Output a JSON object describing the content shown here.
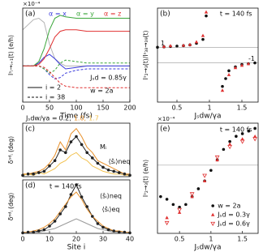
{
  "chart_data": [
    {
      "type": "line",
      "panel": "(a)",
      "multiplier": "×10⁻⁴",
      "xlabel": "Time (fs)",
      "ylabel": "Iˢᵢ→ᵢ₊₁(t) (e/h)",
      "x": [
        0,
        20,
        30,
        40,
        50,
        60,
        70,
        80,
        100,
        120,
        140,
        160,
        180,
        200
      ],
      "xlim": [
        0,
        200
      ],
      "xticks": [
        0,
        50,
        100,
        150,
        200
      ],
      "ylim": [
        -2.5,
        4
      ],
      "series": [
        {
          "color": "#b4b4b4",
          "dash": "solid",
          "values": [
            2.5,
            3.2,
            3.3,
            3.0,
            1.5,
            0.5,
            0.2,
            0,
            0,
            0,
            0,
            0,
            0,
            0
          ]
        },
        {
          "color": "#3b3bdc",
          "dash": "solid",
          "values": [
            0,
            0,
            0.2,
            0.6,
            0.8,
            0.5,
            0.1,
            -0.2,
            -0.1,
            0,
            0,
            0,
            0,
            0
          ]
        },
        {
          "color": "#3aa63a",
          "dash": "solid",
          "values": [
            0,
            0,
            0.3,
            1.2,
            2.5,
            3.3,
            3.5,
            3.4,
            3.3,
            3.3,
            3.3,
            3.3,
            3.3,
            3.3
          ]
        },
        {
          "color": "#e03030",
          "dash": "solid",
          "values": [
            0,
            0,
            0.1,
            0.5,
            1.2,
            2.0,
            2.4,
            2.5,
            2.5,
            2.4,
            2.4,
            2.4,
            2.4,
            2.4
          ]
        },
        {
          "color": "#3b3bdc",
          "dash": "dashed",
          "values": [
            0,
            0,
            0,
            -0.2,
            -0.6,
            -0.9,
            -0.8,
            -0.5,
            -0.3,
            -0.2,
            -0.2,
            -0.2,
            -0.2,
            -0.2
          ]
        },
        {
          "color": "#3aa63a",
          "dash": "dashed",
          "values": [
            0,
            0,
            0,
            -0.2,
            -0.5,
            -0.3,
            0.2,
            0.4,
            0.3,
            0.2,
            0.2,
            0.2,
            0.2,
            0.2
          ]
        },
        {
          "color": "#e03030",
          "dash": "dashed",
          "values": [
            0,
            0,
            0,
            -0.1,
            -0.4,
            -0.8,
            -1.2,
            -1.4,
            -1.5,
            -1.5,
            -1.5,
            -1.5,
            -1.5,
            -1.5
          ]
        }
      ],
      "legend_colors": [
        {
          "label": "α = x",
          "color": "#3b3bdc"
        },
        {
          "label": "α = y",
          "color": "#3aa63a"
        },
        {
          "label": "α = z",
          "color": "#e03030"
        }
      ],
      "legend_styles": [
        {
          "label": "i = 2",
          "dash": "solid"
        },
        {
          "label": "i = 38",
          "dash": "dashed"
        }
      ],
      "annotations": [
        "Jₛd = 0.85γ",
        "w = 2a"
      ]
    },
    {
      "type": "scatter",
      "panel": "(b)",
      "annotations": [
        "t = 140 fs"
      ],
      "xlabel": "Jₛdw/γa",
      "ylabel": "Iˢ₂→₃(t)/Iˢ₃₈→₃₉(t)",
      "xlim": [
        0.2,
        1.75
      ],
      "xticks": [
        0.5,
        1,
        1.5
      ],
      "ylim": [
        -6,
        6
      ],
      "yticks": [
        1,
        -1
      ],
      "series": [
        {
          "color": "#111111",
          "marker": "circle",
          "x": [
            0.2,
            0.3,
            0.4,
            0.5,
            0.6,
            0.7,
            0.8,
            0.9,
            0.95,
            1.2,
            1.25,
            1.3,
            1.4,
            1.5,
            1.6,
            1.7
          ],
          "values": [
            1.0,
            1.05,
            1.1,
            1.15,
            1.2,
            1.3,
            1.5,
            2.0,
            5,
            -4,
            -3,
            -2,
            -1.5,
            -1.2,
            -1.1,
            -1.0
          ]
        },
        {
          "color": "#e03030",
          "marker": "triangle",
          "x": [
            0.3,
            0.4,
            0.6,
            0.7,
            0.8,
            0.9,
            0.95,
            1.2,
            1.3,
            1.4,
            1.5,
            1.6
          ],
          "values": [
            1.1,
            1.2,
            1.25,
            1.35,
            1.7,
            2.5,
            5.5,
            -4.5,
            -2.5,
            -1.6,
            -1.3,
            -1.1
          ]
        }
      ]
    },
    {
      "type": "line",
      "panel": "(c)",
      "ylabel": "δˢᵈᵢ (deg)",
      "legend_title": "Jₛdw/γa = ",
      "x": [
        0,
        2,
        4,
        6,
        8,
        10,
        12,
        14,
        16,
        18,
        20,
        22,
        24,
        26,
        28,
        30,
        32,
        34,
        36,
        38,
        40
      ],
      "xlim": [
        0,
        40
      ],
      "ylim": [
        0,
        2
      ],
      "series": [
        {
          "name": "0.2,",
          "color": "#222222",
          "dash": "solid",
          "marker": "circle",
          "values": [
            0.05,
            0.1,
            0.1,
            0.15,
            0.2,
            0.4,
            0.6,
            1.0,
            0.9,
            1.3,
            1.5,
            1.2,
            0.9,
            0.7,
            0.5,
            0.35,
            0.25,
            0.2,
            0.15,
            0.1,
            0.05
          ]
        },
        {
          "name": "1.0,",
          "color": "#e8902a",
          "dash": "solid",
          "values": [
            0.1,
            0.1,
            0.15,
            0.2,
            0.3,
            0.5,
            0.8,
            1.3,
            1.0,
            1.6,
            1.8,
            1.5,
            1.1,
            0.9,
            0.6,
            0.5,
            0.4,
            0.3,
            0.2,
            0.1,
            0.1
          ]
        },
        {
          "name": "1.7",
          "color": "#f2c14e",
          "dash": "solid",
          "values": [
            0.05,
            0.1,
            0.05,
            0.15,
            0.1,
            0.2,
            0.3,
            0.5,
            0.6,
            0.8,
            0.9,
            0.7,
            0.6,
            0.4,
            0.3,
            0.2,
            0.15,
            0.1,
            0.1,
            0.05,
            0.05
          ]
        }
      ],
      "annotations": [
        "Mᵢ",
        "⟨ŝᵢ⟩neq"
      ]
    },
    {
      "type": "line",
      "panel": "(d)",
      "xlabel": "Site i",
      "ylabel": "δⁿᵈᵢ (deg)",
      "x": [
        0,
        2,
        4,
        6,
        8,
        10,
        12,
        14,
        16,
        18,
        20,
        22,
        24,
        26,
        28,
        30,
        32,
        34,
        36,
        38,
        40
      ],
      "xlim": [
        0,
        40
      ],
      "xticks": [
        0,
        10,
        20,
        30,
        40
      ],
      "ylim": [
        0,
        2.2
      ],
      "series": [
        {
          "color": "#222222",
          "dash": "solid",
          "marker": "circle",
          "values": [
            0.02,
            0.05,
            0.05,
            0.1,
            0.15,
            0.3,
            0.5,
            0.8,
            1.1,
            1.6,
            2.0,
            1.5,
            1.1,
            0.7,
            0.4,
            0.25,
            0.15,
            0.1,
            0.05,
            0.05,
            0.02
          ]
        },
        {
          "color": "#e8902a",
          "dash": "solid",
          "values": [
            0.05,
            0.05,
            0.1,
            0.15,
            0.25,
            0.4,
            0.6,
            0.9,
            1.2,
            1.5,
            1.7,
            1.4,
            1.0,
            0.7,
            0.5,
            0.3,
            0.2,
            0.1,
            0.1,
            0.05,
            0.05
          ]
        },
        {
          "color": "#9a9a9a",
          "dash": "solid",
          "values": [
            0.02,
            0.03,
            0.05,
            0.05,
            0.1,
            0.15,
            0.2,
            0.3,
            0.4,
            0.5,
            0.6,
            0.5,
            0.4,
            0.3,
            0.2,
            0.15,
            0.1,
            0.05,
            0.05,
            0.03,
            0.02
          ]
        }
      ],
      "annotations": [
        "t = 140 fs",
        "⟨ŝᵢ⟩neq",
        "⟨ŝᵢ⟩eq"
      ]
    },
    {
      "type": "scatter",
      "panel": "(e)",
      "multiplier": "×10⁻⁴",
      "annotations": [
        "t = 140 fs"
      ],
      "xlabel": "Jₛdw/γa",
      "ylabel": "Iˢ₂→₃(t) (e/h)",
      "xlim": [
        0.15,
        1.75
      ],
      "xticks": [
        0.5,
        1,
        1.5
      ],
      "ylim": [
        -1.3,
        0.8
      ],
      "zero_line": true,
      "series": [
        {
          "name": "w = 2a",
          "color": "#111111",
          "marker": "circle",
          "x": [
            0.2,
            0.3,
            0.4,
            0.5,
            0.6,
            0.7,
            0.8,
            0.9,
            1.0,
            1.1,
            1.2,
            1.3,
            1.4,
            1.5,
            1.6,
            1.7
          ],
          "values": [
            -0.6,
            -0.65,
            -0.75,
            -0.8,
            -0.75,
            -0.6,
            -0.45,
            -0.3,
            -0.1,
            0.1,
            0.3,
            0.45,
            0.55,
            0.6,
            0.65,
            0.7
          ]
        },
        {
          "name": "Jₛd = 0.3γ",
          "color": "#e03030",
          "marker": "triangle",
          "x": [
            0.3,
            0.5,
            0.7,
            0.9,
            1.1,
            1.3,
            1.5,
            1.7
          ],
          "values": [
            -1.0,
            -0.9,
            -0.6,
            -0.3,
            0.1,
            0.4,
            0.5,
            0.55
          ]
        },
        {
          "name": "Jₛd = 0.6γ",
          "color": "#e03030",
          "marker": "triangle-down-open",
          "x": [
            0.3,
            0.5,
            0.7,
            0.9,
            1.1,
            1.3,
            1.5,
            1.7
          ],
          "values": [
            -1.1,
            -0.85,
            -0.55,
            -0.2,
            0.15,
            0.35,
            0.45,
            0.5
          ]
        }
      ]
    }
  ]
}
